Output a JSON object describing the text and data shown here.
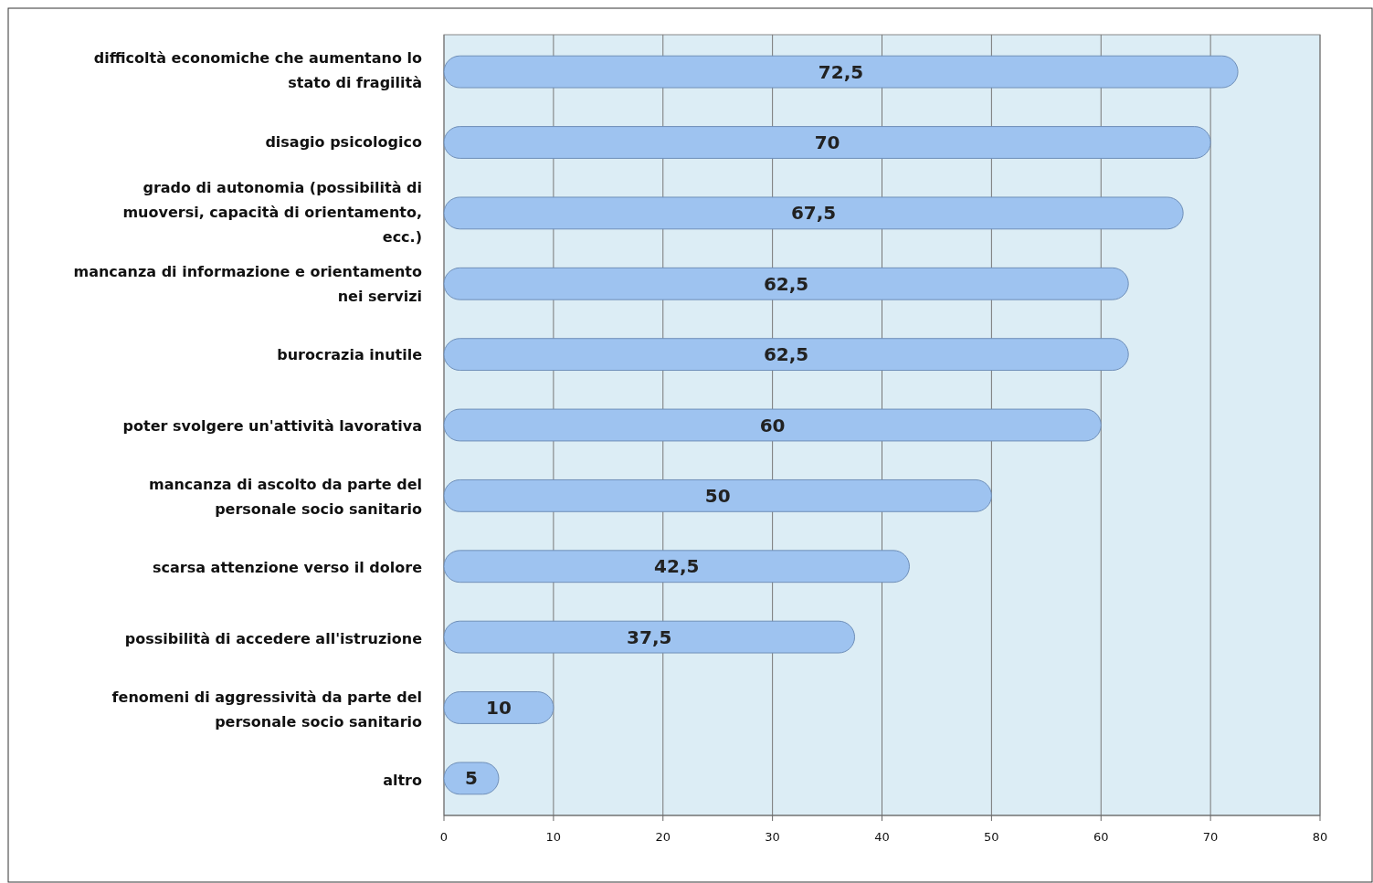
{
  "chart_data": {
    "type": "bar",
    "orientation": "horizontal",
    "categories": [
      "difficoltà economiche che aumentano lo stato di fragilità",
      "disagio psicologico",
      "grado di autonomia (possibilità di muoversi, capacità di orientamento, ecc.)",
      "mancanza di informazione e orientamento nei servizi",
      "burocrazia inutile",
      "poter svolgere un'attività lavorativa",
      "mancanza di ascolto da parte del personale socio sanitario",
      "scarsa attenzione verso il dolore",
      "possibilità di accedere all'istruzione",
      "fenomeni di aggressività da parte del personale socio sanitario",
      "altro"
    ],
    "values": [
      72.5,
      70,
      67.5,
      62.5,
      62.5,
      60,
      50,
      42.5,
      37.5,
      10,
      5
    ],
    "value_labels": [
      "72,5",
      "70",
      "67,5",
      "62,5",
      "62,5",
      "60",
      "50",
      "42,5",
      "37,5",
      "10",
      "5"
    ],
    "color": "#9ec3f0",
    "xlim": [
      0,
      80
    ],
    "xticks": [
      0,
      10,
      20,
      30,
      40,
      50,
      60,
      70,
      80
    ],
    "grid": "x"
  }
}
